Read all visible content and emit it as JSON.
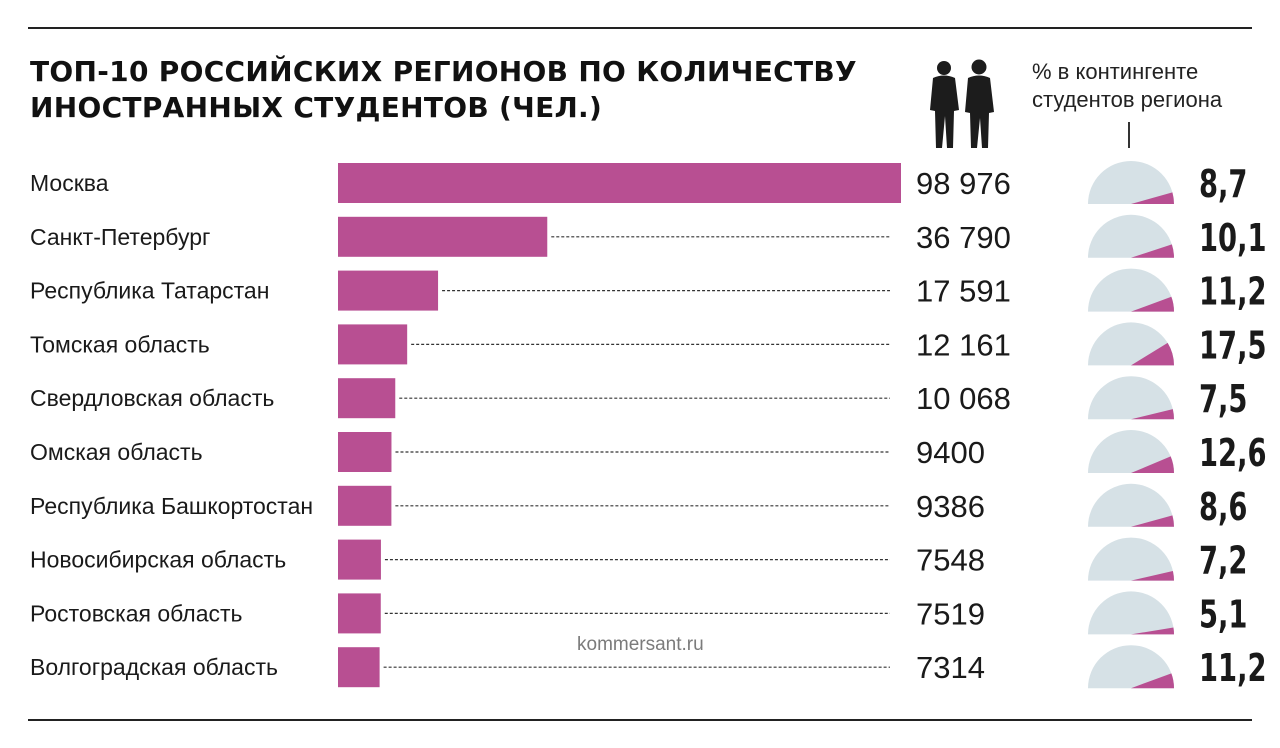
{
  "chart_data": {
    "type": "bar",
    "orientation": "horizontal",
    "title": "ТОП-10 РОССИЙСКИХ РЕГИОНОВ ПО КОЛИЧЕСТВУ ИНОСТРАННЫХ СТУДЕНТОВ (ЧЕЛ.)",
    "title_lines": [
      "ТОП-10 РОССИЙСКИХ РЕГИОНОВ ПО КОЛИЧЕСТВУ",
      "ИНОСТРАННЫХ СТУДЕНТОВ (ЧЕЛ.)"
    ],
    "categories": [
      "Москва",
      "Санкт-Петербург",
      "Республика Татарстан",
      "Томская область",
      "Свердловская область",
      "Омская область",
      "Республика Башкортостан",
      "Новосибирская область",
      "Ростовская область",
      "Волгоградская область"
    ],
    "values": [
      98976,
      36790,
      17591,
      12161,
      10068,
      9400,
      9386,
      7548,
      7519,
      7314
    ],
    "value_labels": [
      "98 976",
      "36 790",
      "17 591",
      "12 161",
      "10 068",
      "9400",
      "9386",
      "7548",
      "7519",
      "7314"
    ],
    "percent_header_lines": [
      "% в контингенте",
      "студентов региона"
    ],
    "percent_values": [
      8.7,
      10.1,
      11.2,
      17.5,
      7.5,
      12.6,
      8.6,
      7.2,
      5.1,
      11.2
    ],
    "percent_labels": [
      "8,7",
      "10,1",
      "11,2",
      "17,5",
      "7,5",
      "12,6",
      "8,6",
      "7,2",
      "5,1",
      "11,2"
    ],
    "bar_color": "#b84f92",
    "gauge_background_color": "#d6e1e6",
    "gauge_fill_color": "#b84f92"
  },
  "source": "kommersant.ru"
}
